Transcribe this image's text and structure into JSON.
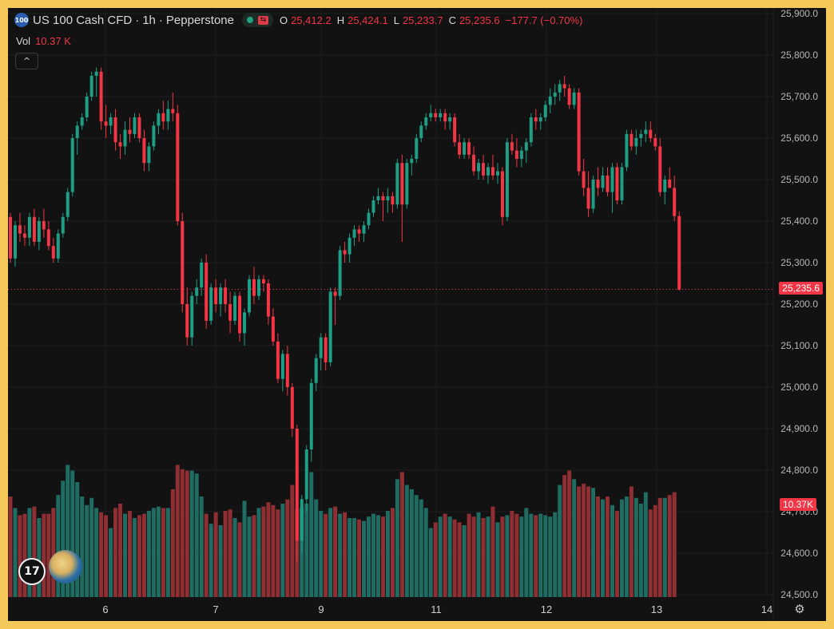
{
  "legend": {
    "symbol_badge": "100",
    "symbol": "US 100 Cash CFD",
    "interval": "1h",
    "broker": "Pepperstone",
    "separator": "·",
    "open_label": "O",
    "open": "25,412.2",
    "high_label": "H",
    "high": "25,424.1",
    "low_label": "L",
    "low": "25,233.7",
    "close_label": "C",
    "close": "25,235.6",
    "change": "−177.7 (−0.70%)"
  },
  "volume": {
    "label": "Vol",
    "value": "10.37 K",
    "tag": "10.37K"
  },
  "collapse_icon": "^",
  "price_axis": [
    "25,900.0",
    "25,800.0",
    "25,700.0",
    "25,600.0",
    "25,500.0",
    "25,400.0",
    "25,300.0",
    "25,200.0",
    "25,100.0",
    "25,000.0",
    "24,900.0",
    "24,800.0",
    "24,700.0",
    "24,600.0",
    "24,500.0"
  ],
  "current_price_tag": "25,235.6",
  "time_axis": [
    "6",
    "7",
    "9",
    "11",
    "12",
    "13",
    "14"
  ],
  "tv_logo_text": "17",
  "settings_icon": "⚙",
  "colors": {
    "up": "#1e9e85",
    "down": "#f23645",
    "vol_up": "#1f6d62",
    "vol_down": "#8f2f33",
    "background": "#121212"
  },
  "chart_data": {
    "type": "candlestick",
    "y_range": [
      24500,
      25900
    ],
    "last_price": 25235.6,
    "candles": [
      [
        25410,
        25420,
        25300,
        25310
      ],
      [
        25310,
        25400,
        25290,
        25390
      ],
      [
        25390,
        25420,
        25350,
        25370
      ],
      [
        25370,
        25390,
        25340,
        25360
      ],
      [
        25360,
        25420,
        25340,
        25410
      ],
      [
        25410,
        25430,
        25340,
        25350
      ],
      [
        25350,
        25410,
        25330,
        25400
      ],
      [
        25400,
        25430,
        25360,
        25380
      ],
      [
        25380,
        25400,
        25330,
        25340
      ],
      [
        25340,
        25360,
        25300,
        25310
      ],
      [
        25310,
        25380,
        25300,
        25370
      ],
      [
        25370,
        25420,
        25360,
        25410
      ],
      [
        25410,
        25480,
        25400,
        25470
      ],
      [
        25470,
        25610,
        25460,
        25600
      ],
      [
        25600,
        25640,
        25560,
        25630
      ],
      [
        25630,
        25660,
        25620,
        25650
      ],
      [
        25650,
        25710,
        25640,
        25700
      ],
      [
        25700,
        25760,
        25690,
        25750
      ],
      [
        25750,
        25770,
        25700,
        25760
      ],
      [
        25760,
        25770,
        25620,
        25640
      ],
      [
        25640,
        25680,
        25600,
        25630
      ],
      [
        25630,
        25660,
        25610,
        25650
      ],
      [
        25650,
        25670,
        25570,
        25590
      ],
      [
        25590,
        25610,
        25550,
        25580
      ],
      [
        25580,
        25640,
        25560,
        25620
      ],
      [
        25620,
        25650,
        25590,
        25610
      ],
      [
        25610,
        25660,
        25600,
        25650
      ],
      [
        25650,
        25660,
        25590,
        25600
      ],
      [
        25600,
        25620,
        25520,
        25540
      ],
      [
        25540,
        25590,
        25520,
        25580
      ],
      [
        25580,
        25640,
        25570,
        25630
      ],
      [
        25630,
        25670,
        25610,
        25660
      ],
      [
        25660,
        25690,
        25620,
        25640
      ],
      [
        25640,
        25690,
        25620,
        25670
      ],
      [
        25670,
        25710,
        25640,
        25660
      ],
      [
        25660,
        25680,
        25390,
        25400
      ],
      [
        25400,
        25420,
        25180,
        25200
      ],
      [
        25200,
        25240,
        25100,
        25120
      ],
      [
        25120,
        25230,
        25100,
        25220
      ],
      [
        25220,
        25260,
        25200,
        25240
      ],
      [
        25240,
        25310,
        25220,
        25300
      ],
      [
        25300,
        25320,
        25140,
        25160
      ],
      [
        25160,
        25250,
        25150,
        25240
      ],
      [
        25240,
        25260,
        25180,
        25200
      ],
      [
        25200,
        25250,
        25170,
        25240
      ],
      [
        25240,
        25260,
        25180,
        25200
      ],
      [
        25200,
        25230,
        25130,
        25160
      ],
      [
        25160,
        25230,
        25150,
        25220
      ],
      [
        25220,
        25230,
        25110,
        25130
      ],
      [
        25130,
        25190,
        25100,
        25180
      ],
      [
        25180,
        25270,
        25170,
        25260
      ],
      [
        25260,
        25290,
        25200,
        25220
      ],
      [
        25220,
        25270,
        25210,
        25260
      ],
      [
        25260,
        25270,
        25230,
        25250
      ],
      [
        25250,
        25260,
        25150,
        25170
      ],
      [
        25170,
        25190,
        25100,
        25110
      ],
      [
        25110,
        25130,
        25010,
        25020
      ],
      [
        25020,
        25090,
        24990,
        25080
      ],
      [
        25080,
        25100,
        24980,
        25000
      ],
      [
        25000,
        25010,
        24880,
        24900
      ],
      [
        24900,
        24910,
        24580,
        24630
      ],
      [
        24630,
        24740,
        24600,
        24730
      ],
      [
        24730,
        24860,
        24700,
        24850
      ],
      [
        24850,
        25020,
        24820,
        25010
      ],
      [
        25010,
        25080,
        24990,
        25070
      ],
      [
        25070,
        25130,
        25040,
        25120
      ],
      [
        25120,
        25130,
        25040,
        25060
      ],
      [
        25060,
        25240,
        25050,
        25230
      ],
      [
        25230,
        25240,
        25150,
        25220
      ],
      [
        25220,
        25340,
        25210,
        25330
      ],
      [
        25330,
        25350,
        25300,
        25320
      ],
      [
        25320,
        25370,
        25300,
        25360
      ],
      [
        25360,
        25390,
        25340,
        25380
      ],
      [
        25380,
        25390,
        25350,
        25370
      ],
      [
        25370,
        25400,
        25350,
        25390
      ],
      [
        25390,
        25430,
        25380,
        25420
      ],
      [
        25420,
        25460,
        25410,
        25450
      ],
      [
        25450,
        25480,
        25440,
        25460
      ],
      [
        25460,
        25470,
        25400,
        25450
      ],
      [
        25450,
        25480,
        25420,
        25460
      ],
      [
        25460,
        25470,
        25420,
        25440
      ],
      [
        25440,
        25550,
        25430,
        25540
      ],
      [
        25540,
        25560,
        25350,
        25440
      ],
      [
        25440,
        25550,
        25430,
        25540
      ],
      [
        25540,
        25560,
        25510,
        25550
      ],
      [
        25550,
        25610,
        25540,
        25600
      ],
      [
        25600,
        25640,
        25590,
        25630
      ],
      [
        25630,
        25660,
        25620,
        25650
      ],
      [
        25650,
        25680,
        25640,
        25660
      ],
      [
        25660,
        25670,
        25640,
        25650
      ],
      [
        25650,
        25670,
        25640,
        25660
      ],
      [
        25660,
        25670,
        25620,
        25640
      ],
      [
        25640,
        25660,
        25620,
        25650
      ],
      [
        25650,
        25660,
        25580,
        25590
      ],
      [
        25590,
        25610,
        25550,
        25560
      ],
      [
        25560,
        25600,
        25550,
        25590
      ],
      [
        25590,
        25600,
        25550,
        25560
      ],
      [
        25560,
        25580,
        25510,
        25520
      ],
      [
        25520,
        25550,
        25500,
        25540
      ],
      [
        25540,
        25560,
        25500,
        25510
      ],
      [
        25510,
        25540,
        25490,
        25530
      ],
      [
        25530,
        25560,
        25500,
        25510
      ],
      [
        25510,
        25540,
        25490,
        25520
      ],
      [
        25520,
        25530,
        25390,
        25410
      ],
      [
        25410,
        25600,
        25400,
        25590
      ],
      [
        25590,
        25610,
        25560,
        25570
      ],
      [
        25570,
        25600,
        25530,
        25550
      ],
      [
        25550,
        25580,
        25530,
        25570
      ],
      [
        25570,
        25600,
        25540,
        25590
      ],
      [
        25590,
        25660,
        25580,
        25650
      ],
      [
        25650,
        25670,
        25620,
        25640
      ],
      [
        25640,
        25660,
        25620,
        25650
      ],
      [
        25650,
        25690,
        25640,
        25680
      ],
      [
        25680,
        25720,
        25660,
        25700
      ],
      [
        25700,
        25730,
        25680,
        25710
      ],
      [
        25710,
        25740,
        25690,
        25730
      ],
      [
        25730,
        25750,
        25700,
        25720
      ],
      [
        25720,
        25730,
        25670,
        25680
      ],
      [
        25680,
        25720,
        25670,
        25710
      ],
      [
        25710,
        25720,
        25510,
        25520
      ],
      [
        25520,
        25550,
        25460,
        25480
      ],
      [
        25480,
        25520,
        25410,
        25430
      ],
      [
        25430,
        25510,
        25420,
        25500
      ],
      [
        25500,
        25530,
        25460,
        25480
      ],
      [
        25480,
        25530,
        25470,
        25510
      ],
      [
        25510,
        25530,
        25460,
        25470
      ],
      [
        25470,
        25540,
        25420,
        25530
      ],
      [
        25530,
        25540,
        25440,
        25450
      ],
      [
        25450,
        25540,
        25440,
        25530
      ],
      [
        25530,
        25620,
        25520,
        25610
      ],
      [
        25610,
        25620,
        25570,
        25580
      ],
      [
        25580,
        25620,
        25560,
        25600
      ],
      [
        25600,
        25620,
        25580,
        25610
      ],
      [
        25610,
        25640,
        25590,
        25620
      ],
      [
        25620,
        25640,
        25590,
        25600
      ],
      [
        25600,
        25610,
        25570,
        25580
      ],
      [
        25580,
        25600,
        25460,
        25470
      ],
      [
        25470,
        25510,
        25440,
        25500
      ],
      [
        25500,
        25530,
        25480,
        25480
      ],
      [
        25480,
        25510,
        25400,
        25412
      ],
      [
        25412,
        25424,
        25233,
        25235
      ]
    ],
    "volume": [
      70,
      62,
      57,
      58,
      62,
      63,
      55,
      58,
      58,
      62,
      71,
      81,
      92,
      88,
      80,
      70,
      64,
      69,
      62,
      59,
      57,
      48,
      62,
      65,
      58,
      60,
      55,
      57,
      58,
      60,
      62,
      63,
      62,
      62,
      75,
      92,
      89,
      88,
      88,
      86,
      70,
      58,
      51,
      59,
      50,
      60,
      61,
      55,
      52,
      67,
      56,
      57,
      62,
      63,
      66,
      64,
      61,
      65,
      68,
      78,
      61,
      62,
      65,
      87,
      68,
      60,
      58,
      62,
      63,
      58,
      59,
      55,
      55,
      54,
      53,
      56,
      58,
      57,
      56,
      60,
      62,
      82,
      87,
      78,
      75,
      71,
      68,
      62,
      48,
      52,
      56,
      58,
      56,
      54,
      52,
      50,
      58,
      56,
      59,
      55,
      56,
      63,
      52,
      56,
      57,
      60,
      58,
      56,
      62,
      58,
      57,
      58,
      57,
      56,
      59,
      78,
      85,
      88,
      82,
      77,
      79,
      77,
      76,
      70,
      68,
      70,
      64,
      60,
      68,
      70,
      77,
      69,
      65,
      73,
      61,
      64,
      69,
      69,
      71,
      73
    ]
  }
}
